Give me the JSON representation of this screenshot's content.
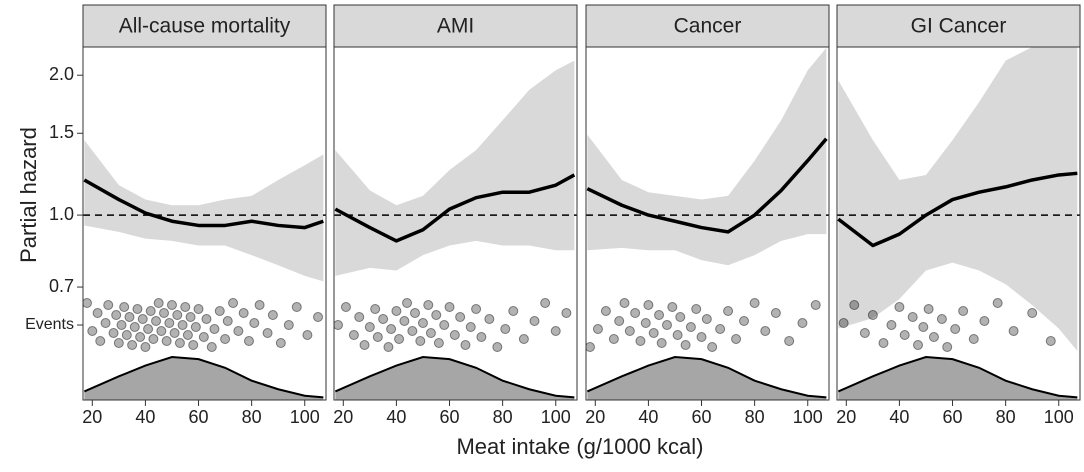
{
  "x_label": "Meat intake (g/1000 kcal)",
  "y_label": "Partial hazard",
  "chart_data": [
    {
      "type": "line",
      "title": "All-cause mortality",
      "xlim": [
        16.5,
        108
      ],
      "xticks": [
        20,
        40,
        60,
        80,
        100
      ],
      "ylim": [
        0.4,
        2.3
      ],
      "yticks": [
        0.7,
        {
          "value": 1,
          "label": "1.0"
        },
        1.5,
        {
          "value": 2,
          "label": "2.0"
        },
        {
          "value": 0.58,
          "label": "Events"
        }
      ],
      "log_y": true,
      "x": [
        17,
        30,
        40,
        50,
        60,
        70,
        80,
        90,
        100,
        107
      ],
      "values": [
        1.19,
        1.08,
        1.01,
        0.97,
        0.95,
        0.95,
        0.97,
        0.95,
        0.94,
        0.97
      ],
      "ci_lower": [
        0.95,
        0.92,
        0.89,
        0.88,
        0.86,
        0.86,
        0.82,
        0.78,
        0.74,
        0.72
      ],
      "ci_upper": [
        1.45,
        1.16,
        1.08,
        1.05,
        1.05,
        1.08,
        1.1,
        1.19,
        1.28,
        1.35
      ],
      "density": [
        0.2,
        0.55,
        0.8,
        1.0,
        0.95,
        0.75,
        0.45,
        0.25,
        0.1,
        0.06
      ],
      "events_x": [
        18,
        20,
        22,
        23,
        25,
        26,
        28,
        29,
        30,
        31,
        32,
        33,
        34,
        35,
        36,
        37,
        38,
        39,
        40,
        41,
        42,
        43,
        44,
        45,
        46,
        47,
        48,
        49,
        50,
        51,
        52,
        53,
        54,
        55,
        56,
        57,
        58,
        59,
        60,
        62,
        63,
        65,
        66,
        68,
        70,
        71,
        73,
        75,
        77,
        79,
        81,
        83,
        86,
        88,
        91,
        94,
        97,
        101,
        105
      ]
    },
    {
      "type": "line",
      "title": "AMI",
      "xlim": [
        16.5,
        108
      ],
      "xticks": [
        20,
        40,
        60,
        80,
        100
      ],
      "x": [
        17,
        30,
        40,
        50,
        60,
        70,
        80,
        90,
        100,
        107
      ],
      "values": [
        1.03,
        0.94,
        0.88,
        0.93,
        1.03,
        1.09,
        1.12,
        1.12,
        1.16,
        1.22
      ],
      "ci_lower": [
        0.74,
        0.77,
        0.76,
        0.82,
        0.86,
        0.88,
        0.86,
        0.86,
        0.84,
        0.84
      ],
      "ci_upper": [
        1.38,
        1.13,
        1.05,
        1.1,
        1.25,
        1.38,
        1.6,
        1.86,
        2.05,
        2.15
      ],
      "density": [
        0.2,
        0.55,
        0.8,
        1.0,
        0.95,
        0.75,
        0.45,
        0.25,
        0.1,
        0.06
      ],
      "events_x": [
        18,
        21,
        24,
        26,
        28,
        30,
        32,
        33,
        35,
        37,
        38,
        40,
        41,
        43,
        44,
        46,
        47,
        49,
        50,
        52,
        53,
        55,
        56,
        58,
        60,
        62,
        64,
        66,
        68,
        70,
        72,
        75,
        78,
        81,
        84,
        88,
        92,
        96,
        100,
        104
      ]
    },
    {
      "type": "line",
      "title": "Cancer",
      "xlim": [
        16.5,
        108
      ],
      "xticks": [
        20,
        40,
        60,
        80,
        100
      ],
      "x": [
        17,
        30,
        40,
        50,
        60,
        70,
        80,
        90,
        100,
        107
      ],
      "values": [
        1.14,
        1.05,
        1.0,
        0.97,
        0.94,
        0.92,
        1.0,
        1.13,
        1.31,
        1.46
      ],
      "ci_lower": [
        0.84,
        0.85,
        0.84,
        0.84,
        0.8,
        0.78,
        0.82,
        0.88,
        0.91,
        0.91
      ],
      "ci_upper": [
        1.49,
        1.19,
        1.12,
        1.1,
        1.08,
        1.1,
        1.31,
        1.6,
        2.05,
        2.29
      ],
      "density": [
        0.2,
        0.55,
        0.8,
        1.0,
        0.95,
        0.75,
        0.45,
        0.25,
        0.1,
        0.06
      ],
      "events_x": [
        18,
        21,
        24,
        27,
        29,
        31,
        33,
        35,
        37,
        39,
        40,
        42,
        44,
        45,
        47,
        49,
        51,
        52,
        54,
        56,
        58,
        60,
        62,
        64,
        67,
        70,
        73,
        76,
        80,
        84,
        88,
        93,
        98,
        103
      ]
    },
    {
      "type": "line",
      "title": "GI Cancer",
      "xlim": [
        16.5,
        108
      ],
      "xticks": [
        20,
        40,
        60,
        80,
        100
      ],
      "x": [
        17,
        30,
        40,
        50,
        60,
        70,
        80,
        90,
        100,
        107
      ],
      "values": [
        0.98,
        0.86,
        0.91,
        1.0,
        1.08,
        1.12,
        1.15,
        1.19,
        1.22,
        1.23
      ],
      "ci_lower": [
        0.57,
        0.6,
        0.66,
        0.76,
        0.79,
        0.76,
        0.71,
        0.64,
        0.57,
        0.51
      ],
      "ci_upper": [
        1.95,
        1.45,
        1.19,
        1.22,
        1.45,
        1.75,
        2.15,
        2.3,
        2.3,
        2.3
      ],
      "density": [
        0.2,
        0.55,
        0.8,
        1.0,
        0.95,
        0.75,
        0.45,
        0.25,
        0.1,
        0.06
      ],
      "events_x": [
        19,
        23,
        27,
        30,
        34,
        37,
        40,
        42,
        45,
        47,
        49,
        51,
        53,
        56,
        58,
        61,
        64,
        68,
        72,
        77,
        83,
        90,
        97
      ]
    }
  ]
}
